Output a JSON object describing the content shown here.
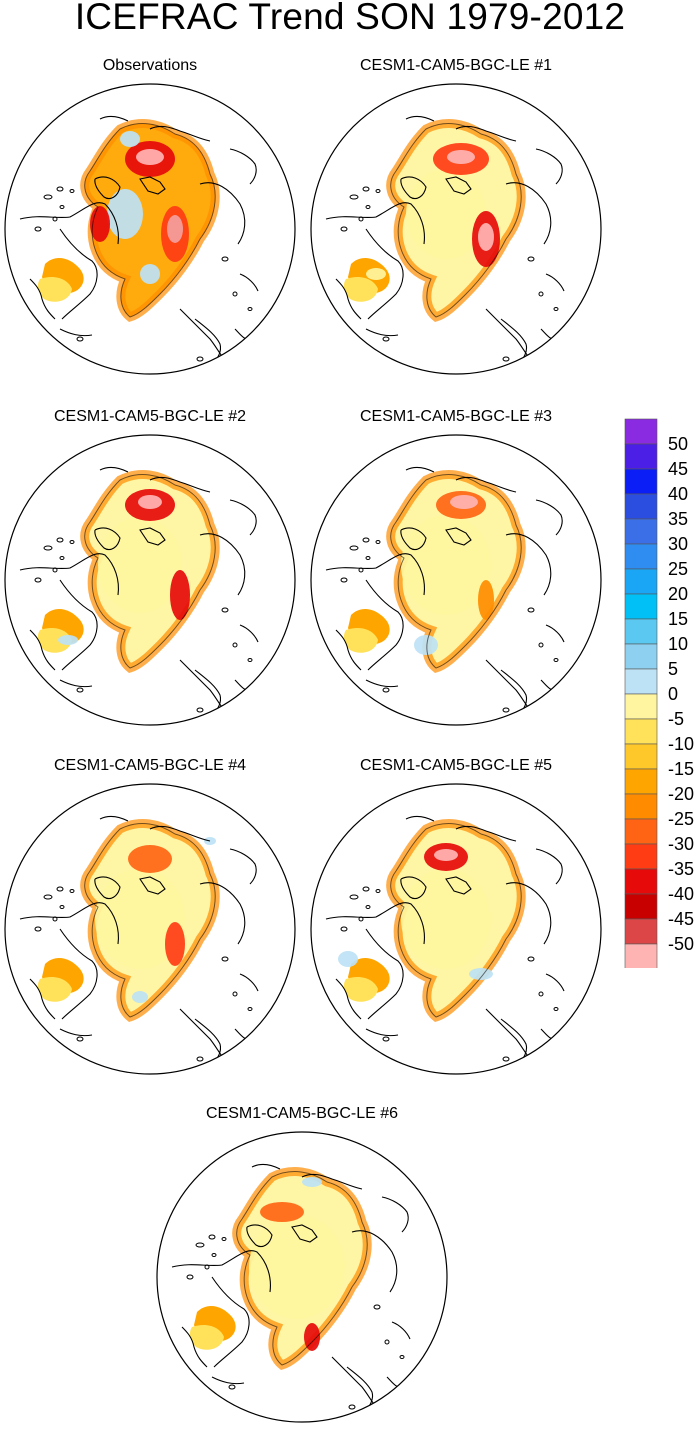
{
  "title": "ICEFRAC Trend SON 1979-2012",
  "panels": [
    {
      "label": "Observations",
      "pattern": "obs"
    },
    {
      "label": "CESM1-CAM5-BGC-LE #1",
      "pattern": "m1"
    },
    {
      "label": "CESM1-CAM5-BGC-LE #2",
      "pattern": "m2"
    },
    {
      "label": "CESM1-CAM5-BGC-LE #3",
      "pattern": "m3"
    },
    {
      "label": "CESM1-CAM5-BGC-LE #4",
      "pattern": "m4"
    },
    {
      "label": "CESM1-CAM5-BGC-LE #5",
      "pattern": "m5"
    },
    {
      "label": "CESM1-CAM5-BGC-LE #6",
      "pattern": "m6"
    }
  ],
  "colorbar": {
    "labels": [
      "50",
      "45",
      "40",
      "35",
      "30",
      "25",
      "20",
      "15",
      "10",
      "5",
      "0",
      "-5",
      "-10",
      "-15",
      "-20",
      "-25",
      "-30",
      "-35",
      "-40",
      "-45",
      "-50"
    ],
    "colors": [
      "#8a2be2",
      "#4b1fe6",
      "#0a1ef5",
      "#2b4ee0",
      "#3a6fe8",
      "#2f8cf0",
      "#1aa6f5",
      "#00c0f5",
      "#5ac8f0",
      "#8ed0f0",
      "#bde2f5",
      "#fff5a0",
      "#ffe15a",
      "#ffc82a",
      "#ffa500",
      "#ff8c00",
      "#ff6414",
      "#ff3c14",
      "#e60a0a",
      "#c80000",
      "#dc4646",
      "#ffb4b4"
    ]
  }
}
